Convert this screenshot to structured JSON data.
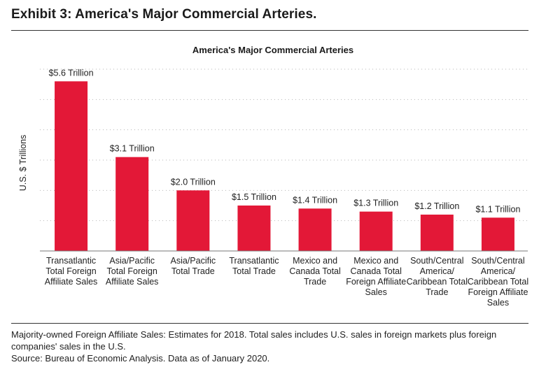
{
  "exhibit_title": "Exhibit 3: America's Major Commercial Arteries.",
  "chart_data": {
    "type": "bar",
    "title": "America's Major Commercial Arteries",
    "ylabel": "U.S. $ Trillions",
    "xlabel": "",
    "ylim": [
      0,
      6
    ],
    "grid": true,
    "categories": [
      "Transatlantic Total Foreign Affiliate Sales",
      "Asia/Pacific Total Foreign Affiliate Sales",
      "Asia/Pacific Total Trade",
      "Transatlantic Total Trade",
      "Mexico and Canada Total Trade",
      "Mexico and Canada Total Foreign Affiliate Sales",
      "South/Central America/ Caribbean Total Trade",
      "South/Central America/ Caribbean Total Foreign Affiliate Sales"
    ],
    "values": [
      5.6,
      3.1,
      2.0,
      1.5,
      1.4,
      1.3,
      1.2,
      1.1
    ],
    "data_labels": [
      "$5.6 Trillion",
      "$3.1 Trillion",
      "$2.0 Trillion",
      "$1.5 Trillion",
      "$1.4 Trillion",
      "$1.3 Trillion",
      "$1.2 Trillion",
      "$1.1 Trillion"
    ],
    "bar_color": "#e31837"
  },
  "footnote": {
    "line1": "Majority-owned Foreign Affiliate Sales: Estimates for 2018. Total sales includes U.S. sales in foreign markets plus foreign companies' sales in the U.S.",
    "line2": "Source: Bureau of Economic Analysis. Data as of January 2020."
  }
}
